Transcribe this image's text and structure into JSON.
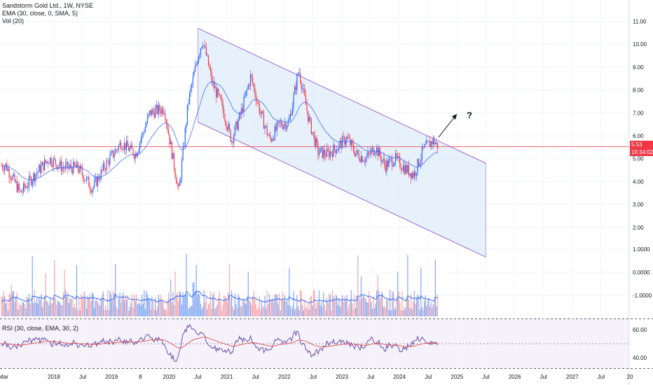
{
  "header": {
    "title": "Sandstorm Gold Ltd., 1W, NYSE",
    "ema_label": "EMA (30, close, 0, SMA, 5)",
    "vol_label": "Vol (20)",
    "rsi_label": "RSI (30, close, EMA, 30, 2)"
  },
  "price_scale": {
    "last_price": "5.53",
    "countdown": "10:34:02",
    "ticks": [
      "11.00",
      "10.00",
      "9.00",
      "8.00",
      "7.00",
      "6.00",
      "5.00",
      "4.00",
      "3.00",
      "2.00"
    ]
  },
  "volume_scale": {
    "ticks": [
      "1.0000",
      "0.0000",
      "-1.0000"
    ]
  },
  "rsi_scale": {
    "ticks": [
      "60.00",
      "40.00"
    ]
  },
  "time_axis": {
    "labels": [
      "Mar",
      "2018",
      "Jul",
      "2019",
      "8",
      "2020",
      "Jul",
      "2021",
      "Jul",
      "2022",
      "Jul",
      "2023",
      "Jul",
      "2024",
      "Jul",
      "2025",
      "Jul",
      "2026",
      "Jul",
      "2027",
      "Jul",
      "20"
    ]
  },
  "annotation": {
    "text": "?"
  },
  "colors": {
    "up": "#2962ff",
    "down": "#f23645",
    "ema": "#2962ff",
    "channel_fill": "#e3eefa",
    "channel_line": "#9c6ad9",
    "rsi_line": "#6b4fa8",
    "rsi_ma": "#e05050",
    "price_line": "#f23645"
  },
  "chart_data": {
    "type": "candlestick",
    "title": "Sandstorm Gold Ltd., 1W, NYSE",
    "price_range": [
      1.5,
      11.3
    ],
    "price_series": {
      "x": [
        "2017-03",
        "2017-06",
        "2017-09",
        "2017-12",
        "2018-03",
        "2018-06",
        "2018-09",
        "2018-12",
        "2019-03",
        "2019-06",
        "2019-09",
        "2019-12",
        "2020-03",
        "2020-05",
        "2020-07",
        "2020-08",
        "2020-10",
        "2020-12",
        "2021-02",
        "2021-04",
        "2021-06",
        "2021-08",
        "2021-10",
        "2021-12",
        "2022-02",
        "2022-04",
        "2022-06",
        "2022-08",
        "2022-10",
        "2022-12",
        "2023-02",
        "2023-04",
        "2023-06",
        "2023-08",
        "2023-10",
        "2023-12",
        "2024-02",
        "2024-04",
        "2024-06",
        "2024-08",
        "2024-09"
      ],
      "close": [
        4.7,
        3.5,
        4.3,
        5.0,
        4.6,
        4.6,
        3.7,
        4.8,
        5.7,
        5.2,
        7.0,
        7.2,
        3.5,
        7.5,
        9.5,
        10.2,
        8.3,
        7.3,
        5.8,
        7.0,
        8.6,
        7.0,
        5.8,
        6.5,
        6.6,
        8.9,
        6.8,
        5.3,
        5.2,
        5.5,
        5.9,
        5.2,
        5.0,
        5.5,
        4.7,
        5.0,
        4.6,
        4.3,
        5.4,
        5.8,
        5.53
      ]
    },
    "channel": {
      "upper": [
        [
          "2020-07",
          10.7
        ],
        [
          "2025-07",
          4.8
        ]
      ],
      "lower": [
        [
          "2020-07",
          6.6
        ],
        [
          "2025-07",
          0.7
        ]
      ]
    },
    "volume": {
      "ticks": [
        "1.0000",
        "0.0000",
        "-1.0000"
      ]
    },
    "rsi": {
      "ticks": [
        "60.00",
        "40.00"
      ],
      "band": [
        40,
        60
      ]
    }
  }
}
